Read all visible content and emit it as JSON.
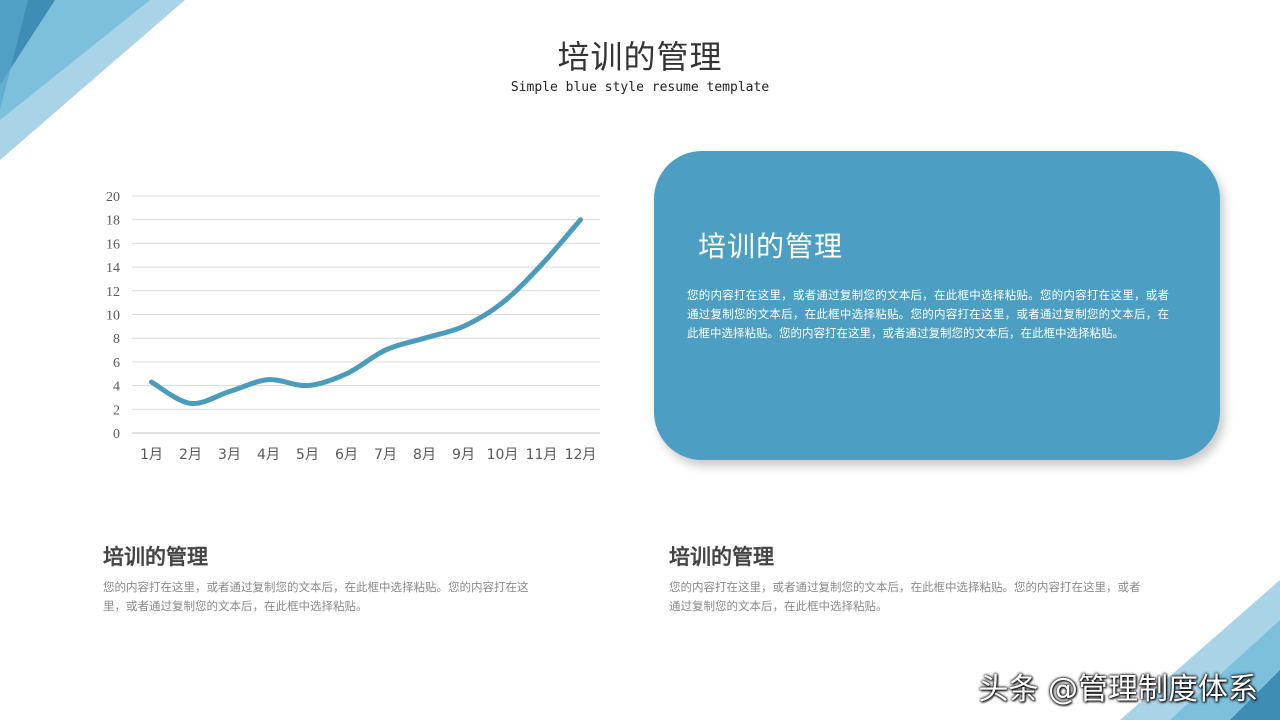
{
  "header": {
    "title": "培训的管理",
    "subtitle": "Simple blue style resume template"
  },
  "colors": {
    "accent": "#4c9fc2",
    "line": "#4b9bbd",
    "corner_light": "#a9d3e6",
    "corner_mid": "#7cc0dc",
    "corner_dark": "#3f8db5"
  },
  "chart_data": {
    "type": "line",
    "categories": [
      "1月",
      "2月",
      "3月",
      "4月",
      "5月",
      "6月",
      "7月",
      "8月",
      "9月",
      "10月",
      "11月",
      "12月"
    ],
    "series": [
      {
        "values": [
          4.3,
          2.5,
          3.5,
          4.5,
          4.0,
          5.0,
          7.0,
          8.0,
          9.0,
          11.0,
          14.2,
          18.0
        ]
      }
    ],
    "ylim": [
      0,
      20
    ],
    "yticks": [
      "0",
      "2",
      "4",
      "6",
      "8",
      "10",
      "12",
      "14",
      "16",
      "18",
      "20"
    ],
    "grid": true,
    "smooth": true,
    "legend": "none"
  },
  "card": {
    "title": "培训的管理",
    "body": "您的内容打在这里，或者通过复制您的文本后，在此框中选择粘贴。您的内容打在这里，或者通过复制您的文本后，在此框中选择粘贴。您的内容打在这里，或者通过复制您的文本后，在此框中选择粘贴。您的内容打在这里，或者通过复制您的文本后，在此框中选择粘贴。"
  },
  "blocks": [
    {
      "title": "培训的管理",
      "body": "您的内容打在这里，或者通过复制您的文本后，在此框中选择粘贴。您的内容打在这里，或者通过复制您的文本后，在此框中选择粘贴。"
    },
    {
      "title": "培训的管理",
      "body": "您的内容打在这里，或者通过复制您的文本后，在此框中选择粘贴。您的内容打在这里，或者通过复制您的文本后，在此框中选择粘贴。"
    }
  ],
  "watermark": "头条 @管理制度体系"
}
